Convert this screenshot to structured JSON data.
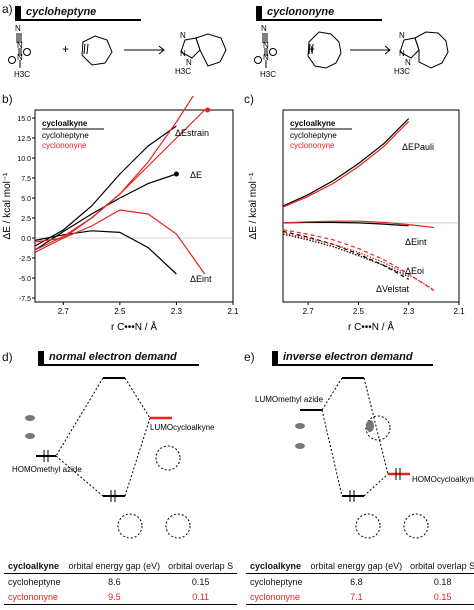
{
  "panel_labels": {
    "a": "a)",
    "b": "b)",
    "c": "c)",
    "d": "d)",
    "e": "e)"
  },
  "headers": {
    "cycloheptyne": "cycloheptyne",
    "cyclononyne": "cyclononyne",
    "normal": "normal electron demand",
    "inverse": "inverse electron demand"
  },
  "reaction": {
    "plus": "+",
    "methyl": "H3C"
  },
  "legend": {
    "title": "cycloalkyne",
    "hept": "cycloheptyne",
    "non": "cyclononyne"
  },
  "colors": {
    "hept": "#000000",
    "non": "#e8231f"
  },
  "axes": {
    "ylabel": "ΔE / kcal mol⁻¹",
    "xlabel": "r C•••N / Å"
  },
  "chart_data": [
    {
      "panel": "b",
      "type": "line",
      "xlabel": "r C•••N / Å",
      "ylabel": "ΔE / kcal mol⁻¹",
      "xlim": [
        2.8,
        2.1
      ],
      "ylim": [
        -8,
        16
      ],
      "xticks": [
        "2.7",
        "2.5",
        "2.3",
        "2.1"
      ],
      "yticks": [
        "-7.5",
        "-5.0",
        "-2.5",
        "0.0",
        "2.5",
        "5.0",
        "7.5",
        "10.0",
        "12.5",
        "15.0"
      ],
      "annotations": [
        "ΔEstrain",
        "ΔE",
        "ΔEint"
      ],
      "series": [
        {
          "name": "cycloheptyne",
          "term": "strain",
          "x": [
            2.8,
            2.7,
            2.6,
            2.5,
            2.4,
            2.3
          ],
          "y": [
            -1.0,
            1.0,
            4.0,
            8.0,
            11.5,
            14.0
          ]
        },
        {
          "name": "cycloheptyne",
          "term": "total",
          "x": [
            2.8,
            2.7,
            2.6,
            2.5,
            2.4,
            2.3
          ],
          "y": [
            -1.5,
            0.8,
            3.0,
            5.0,
            6.8,
            8.0
          ]
        },
        {
          "name": "cycloheptyne",
          "term": "int",
          "x": [
            2.8,
            2.7,
            2.6,
            2.5,
            2.4,
            2.3
          ],
          "y": [
            -0.3,
            0.4,
            0.9,
            0.7,
            -1.2,
            -4.5
          ]
        },
        {
          "name": "cyclononyne",
          "term": "strain",
          "x": [
            2.8,
            2.7,
            2.6,
            2.5,
            2.4,
            2.3,
            2.2
          ],
          "y": [
            -1.5,
            0.2,
            2.5,
            5.5,
            9.5,
            14.5,
            20.0
          ]
        },
        {
          "name": "cyclononyne",
          "term": "total",
          "x": [
            2.8,
            2.7,
            2.6,
            2.5,
            2.4,
            2.3,
            2.2
          ],
          "y": [
            -1.8,
            0.0,
            2.5,
            5.5,
            9.0,
            12.5,
            16.0
          ]
        },
        {
          "name": "cyclononyne",
          "term": "int",
          "x": [
            2.8,
            2.7,
            2.6,
            2.5,
            2.4,
            2.3,
            2.2
          ],
          "y": [
            -0.5,
            0.0,
            1.5,
            3.5,
            3.0,
            0.5,
            -4.5
          ]
        }
      ]
    },
    {
      "panel": "c",
      "type": "line",
      "xlabel": "r C•••N / Å",
      "ylabel": "ΔE / kcal mol⁻¹",
      "xlim": [
        2.8,
        2.1
      ],
      "xticks": [
        "2.7",
        "2.5",
        "2.3",
        "2.1"
      ],
      "annotations": [
        "ΔEPauli",
        "ΔEint",
        "ΔEoi",
        "ΔVelstat"
      ],
      "series": [
        {
          "name": "cycloheptyne",
          "term": "Pauli",
          "x": [
            2.8,
            2.7,
            2.6,
            2.5,
            2.4,
            2.3
          ],
          "y": [
            30,
            50,
            75,
            105,
            140,
            185
          ]
        },
        {
          "name": "cycloheptyne",
          "term": "int",
          "x": [
            2.8,
            2.7,
            2.6,
            2.5,
            2.4,
            2.3
          ],
          "y": [
            0,
            1,
            1,
            0,
            -2,
            -5
          ]
        },
        {
          "name": "cycloheptyne",
          "term": "oi",
          "x": [
            2.8,
            2.7,
            2.6,
            2.5,
            2.4,
            2.3
          ],
          "y": [
            -15,
            -25,
            -38,
            -55,
            -75,
            -100
          ]
        },
        {
          "name": "cycloheptyne",
          "term": "elstat",
          "x": [
            2.8,
            2.7,
            2.6,
            2.5,
            2.4,
            2.3
          ],
          "y": [
            -20,
            -30,
            -42,
            -58,
            -75,
            -95
          ]
        },
        {
          "name": "cyclononyne",
          "term": "Pauli",
          "x": [
            2.8,
            2.7,
            2.6,
            2.5,
            2.4,
            2.3
          ],
          "y": [
            28,
            47,
            70,
            100,
            135,
            180
          ]
        },
        {
          "name": "cyclononyne",
          "term": "int",
          "x": [
            2.8,
            2.7,
            2.6,
            2.5,
            2.4,
            2.3,
            2.2
          ],
          "y": [
            0,
            2,
            3,
            3,
            1,
            -3,
            -8
          ]
        },
        {
          "name": "cyclononyne",
          "term": "oi",
          "x": [
            2.8,
            2.7,
            2.6,
            2.5,
            2.4,
            2.3,
            2.2
          ],
          "y": [
            -12,
            -20,
            -30,
            -45,
            -65,
            -90,
            -120
          ]
        },
        {
          "name": "cyclononyne",
          "term": "elstat",
          "x": [
            2.8,
            2.7,
            2.6,
            2.5,
            2.4,
            2.3,
            2.2
          ],
          "y": [
            -18,
            -27,
            -38,
            -52,
            -70,
            -92,
            -118
          ]
        }
      ]
    }
  ],
  "mo_labels": {
    "lumo_cyc": "LUMOcycloalkyne",
    "homo_az": "HOMOmethyl azide",
    "lumo_az": "LUMOmethyl azide",
    "homo_cyc": "HOMOcycloalkyne"
  },
  "tables": {
    "header": [
      "cycloalkyne",
      "orbital energy gap (eV)",
      "orbital overlap S"
    ],
    "d": [
      {
        "name": "cycloheptyne",
        "gap": "8.6",
        "overlap": "0.15"
      },
      {
        "name": "cyclononyne",
        "gap": "9.5",
        "overlap": "0.11"
      }
    ],
    "e": [
      {
        "name": "cycloheptyne",
        "gap": "6.8",
        "overlap": "0.18"
      },
      {
        "name": "cyclononyne",
        "gap": "7.1",
        "overlap": "0.15"
      }
    ]
  }
}
